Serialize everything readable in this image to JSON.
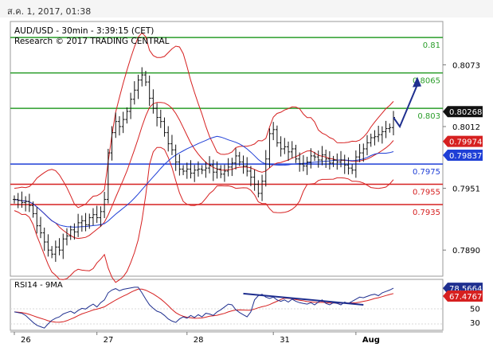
{
  "header": {
    "timestamp": "ส.ค. 1, 2017, 01:38"
  },
  "chart_data": [
    {
      "type": "line",
      "title": "AUD/USD - 30min - 3:39:15 (CET)",
      "subtitle": "Research © 2017 TRADING CENTRAL",
      "y_ticks": [
        "0.8073",
        "0.8012",
        "0.7951",
        "0.7890"
      ],
      "x_ticks": [
        "26",
        "27",
        "28",
        "31",
        "Aug"
      ],
      "levels": [
        {
          "value": 0.81,
          "label": "0.81",
          "color": "#2a9d2a"
        },
        {
          "value": 0.8065,
          "label": "0.8065",
          "color": "#2a9d2a"
        },
        {
          "value": 0.803,
          "label": "0.803",
          "color": "#2a9d2a"
        },
        {
          "value": 0.7975,
          "label": "0.7975",
          "color": "#1f3fd6"
        },
        {
          "value": 0.7955,
          "label": "0.7955",
          "color": "#d62020"
        },
        {
          "value": 0.7935,
          "label": "0.7935",
          "color": "#d62020"
        }
      ],
      "badges": [
        {
          "value": 0.80268,
          "label": "0.80268",
          "color": "#111111"
        },
        {
          "value": 0.79974,
          "label": "0.79974",
          "color": "#d62020"
        },
        {
          "value": 0.79837,
          "label": "0.79837",
          "color": "#1f3fd6"
        }
      ],
      "closes": [
        0.794,
        0.7939,
        0.7937,
        0.7938,
        0.7934,
        0.7926,
        0.7914,
        0.7907,
        0.7898,
        0.789,
        0.7886,
        0.7893,
        0.789,
        0.7901,
        0.7904,
        0.791,
        0.7908,
        0.7917,
        0.7919,
        0.7915,
        0.7922,
        0.7925,
        0.7922,
        0.7928,
        0.794,
        0.7986,
        0.8006,
        0.8017,
        0.8012,
        0.8019,
        0.8027,
        0.8039,
        0.8048,
        0.8058,
        0.8063,
        0.8056,
        0.804,
        0.803,
        0.8021,
        0.8017,
        0.8006,
        0.7995,
        0.7989,
        0.7977,
        0.797,
        0.7968,
        0.797,
        0.7966,
        0.7969,
        0.797,
        0.7969,
        0.7971,
        0.7974,
        0.7967,
        0.797,
        0.7965,
        0.7968,
        0.7972,
        0.7976,
        0.7983,
        0.7977,
        0.7973,
        0.7968,
        0.7962,
        0.7955,
        0.7946,
        0.7958,
        0.798,
        0.8005,
        0.8009,
        0.7996,
        0.799,
        0.7992,
        0.7987,
        0.799,
        0.798,
        0.7975,
        0.7973,
        0.7977,
        0.7983,
        0.7982,
        0.7979,
        0.7984,
        0.798,
        0.7976,
        0.7979,
        0.7977,
        0.7979,
        0.7974,
        0.7971,
        0.7969,
        0.7982,
        0.7986,
        0.799,
        0.7996,
        0.8001,
        0.8002,
        0.8004,
        0.8007,
        0.801,
        0.8011,
        0.8021
      ],
      "forecast": [
        [
          0.8012,
          0.8058
        ]
      ],
      "ylim": [
        0.7865,
        0.8115
      ]
    },
    {
      "type": "line",
      "title": "RSI14 - 9MA",
      "y_ticks": [
        "50",
        "30"
      ],
      "badges": [
        {
          "value": 78.5664,
          "label": "78.5664",
          "color": "#1f2f8f"
        },
        {
          "value": 67.4767,
          "label": "67.4767",
          "color": "#d62020"
        }
      ],
      "rsi": [
        45,
        44,
        43,
        40,
        35,
        30,
        26,
        24,
        22,
        28,
        33,
        36,
        38,
        42,
        44,
        46,
        43,
        47,
        50,
        49,
        53,
        56,
        52,
        58,
        62,
        72,
        76,
        78,
        75,
        77,
        78,
        79,
        80,
        80,
        72,
        63,
        55,
        50,
        46,
        44,
        40,
        35,
        32,
        30,
        35,
        38,
        36,
        40,
        37,
        41,
        38,
        43,
        42,
        40,
        45,
        48,
        52,
        56,
        55,
        48,
        44,
        41,
        38,
        45,
        62,
        68,
        70,
        66,
        64,
        66,
        62,
        60,
        62,
        59,
        63,
        60,
        58,
        57,
        56,
        58,
        55,
        59,
        62,
        57,
        55,
        58,
        57,
        55,
        59,
        57,
        60,
        63,
        66,
        65,
        67,
        69,
        70,
        68,
        72,
        74,
        76,
        78.5664
      ],
      "trend_line": [
        [
          61,
          71
        ],
        [
          93,
          55
        ]
      ],
      "ylim": [
        20,
        90
      ]
    }
  ]
}
